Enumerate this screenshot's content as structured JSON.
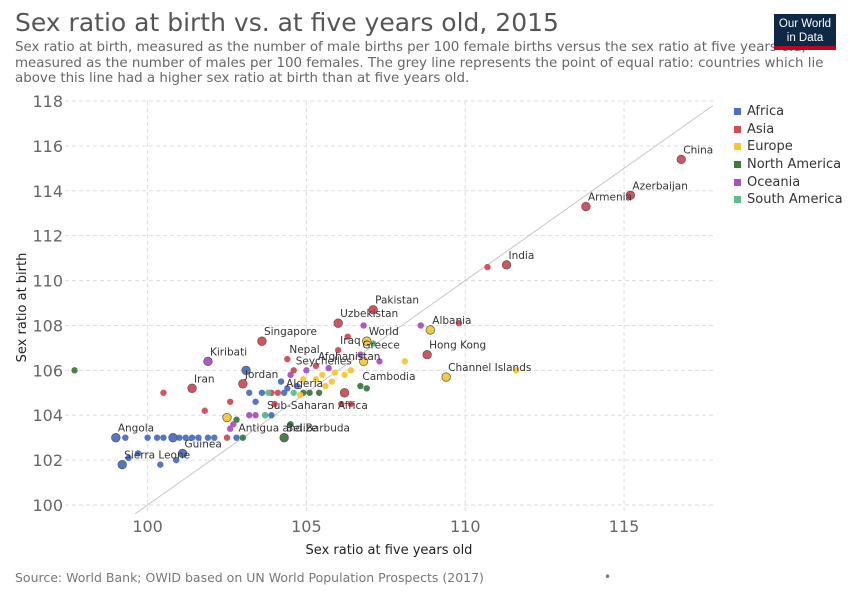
{
  "header": {
    "title": "Sex ratio at birth vs. at five years old, 2015",
    "subtitle": "Sex ratio at birth, measured as the number of male births per 100 female births versus the sex ratio at five years old, measured as the number of males per 100 females. The grey line represents the point of equal ratio: countries which lie above this line had a higher sex ratio at birth than at five years old.",
    "logo_line1": "Our World",
    "logo_line2": "in Data"
  },
  "footer": {
    "source": "Source: World Bank; OWID based on UN World Population Prospects (2017)",
    "dot": "•"
  },
  "colors": {
    "Africa": "#4c6fbf",
    "Asia": "#d14b55",
    "Europe": "#f6c735",
    "North America": "#3c7a42",
    "Oceania": "#a852c2",
    "South America": "#5ebe8b",
    "grid": "#dddddd",
    "diagonal": "#c8c8c8"
  },
  "legend": [
    "Africa",
    "Asia",
    "Europe",
    "North America",
    "Oceania",
    "South America"
  ],
  "chart_data": {
    "type": "scatter",
    "title": "Sex ratio at birth vs. at five years old, 2015",
    "xlabel": "Sex ratio at five years old",
    "ylabel": "Sex ratio at birth",
    "xlim": [
      97.4,
      117.8
    ],
    "ylim": [
      99.6,
      118
    ],
    "xticks": [
      100,
      105,
      110,
      115
    ],
    "yticks": [
      100,
      102,
      104,
      106,
      108,
      110,
      112,
      114,
      116,
      118
    ],
    "grid": true,
    "legend_position": "right",
    "reference_line": "y = x",
    "points": [
      {
        "x": 116.8,
        "y": 115.4,
        "region": "Asia",
        "label": "China",
        "big": true
      },
      {
        "x": 115.2,
        "y": 113.8,
        "region": "Asia",
        "label": "Azerbaijan",
        "big": true
      },
      {
        "x": 113.8,
        "y": 113.3,
        "region": "Asia",
        "label": "Armenia",
        "big": true
      },
      {
        "x": 111.3,
        "y": 110.7,
        "region": "Asia",
        "label": "India",
        "big": true
      },
      {
        "x": 110.7,
        "y": 110.6,
        "region": "Asia"
      },
      {
        "x": 107.1,
        "y": 108.7,
        "region": "Asia",
        "label": "Pakistan",
        "big": true
      },
      {
        "x": 106.0,
        "y": 108.1,
        "region": "Asia",
        "label": "Uzbekistan",
        "big": true
      },
      {
        "x": 106.8,
        "y": 108.0,
        "region": "Oceania"
      },
      {
        "x": 108.6,
        "y": 108.0,
        "region": "Oceania"
      },
      {
        "x": 109.8,
        "y": 108.1,
        "region": "Asia"
      },
      {
        "x": 108.9,
        "y": 107.8,
        "region": "Europe",
        "label": "Albania",
        "big": true
      },
      {
        "x": 106.9,
        "y": 107.3,
        "region": "Europe",
        "label": "World",
        "big": true
      },
      {
        "x": 106.3,
        "y": 107.5,
        "region": "Asia"
      },
      {
        "x": 107.1,
        "y": 107.2,
        "region": "South America"
      },
      {
        "x": 103.6,
        "y": 107.3,
        "region": "Asia",
        "label": "Singapore",
        "big": true
      },
      {
        "x": 106.0,
        "y": 106.9,
        "region": "Asia",
        "label": "Iraq"
      },
      {
        "x": 106.7,
        "y": 106.7,
        "region": "Oceania",
        "label": "Greece"
      },
      {
        "x": 108.8,
        "y": 106.7,
        "region": "Asia",
        "label": "Hong Kong",
        "big": true
      },
      {
        "x": 104.4,
        "y": 106.5,
        "region": "Asia",
        "label": "Nepal"
      },
      {
        "x": 106.8,
        "y": 106.4,
        "region": "Europe",
        "big": true
      },
      {
        "x": 108.1,
        "y": 106.4,
        "region": "Europe"
      },
      {
        "x": 107.3,
        "y": 106.4,
        "region": "Oceania"
      },
      {
        "x": 101.9,
        "y": 106.4,
        "region": "Oceania",
        "label": "Kiribati",
        "big": true
      },
      {
        "x": 105.3,
        "y": 106.2,
        "region": "Asia",
        "label": "Afghanistan"
      },
      {
        "x": 104.6,
        "y": 106.0,
        "region": "Asia",
        "label": "Seychelles"
      },
      {
        "x": 103.1,
        "y": 106.0,
        "region": "Africa",
        "big": true
      },
      {
        "x": 109.4,
        "y": 105.7,
        "region": "Europe",
        "label": "Channel Islands",
        "big": true
      },
      {
        "x": 111.6,
        "y": 106.0,
        "region": "Europe"
      },
      {
        "x": 103.0,
        "y": 105.4,
        "region": "Asia",
        "label": "Jordan",
        "big": true
      },
      {
        "x": 101.4,
        "y": 105.2,
        "region": "Asia",
        "label": "Iran",
        "big": true
      },
      {
        "x": 100.5,
        "y": 105.0,
        "region": "Asia"
      },
      {
        "x": 104.3,
        "y": 105.0,
        "region": "Africa",
        "label": "Algeria"
      },
      {
        "x": 106.7,
        "y": 105.3,
        "region": "North America",
        "label": "Cambodia"
      },
      {
        "x": 106.9,
        "y": 105.2,
        "region": "North America"
      },
      {
        "x": 106.2,
        "y": 105.0,
        "region": "Asia",
        "big": true
      },
      {
        "x": 106.1,
        "y": 104.5,
        "region": "Asia"
      },
      {
        "x": 106.4,
        "y": 104.5,
        "region": "Asia"
      },
      {
        "x": 104.0,
        "y": 104.5,
        "region": "Asia"
      },
      {
        "x": 105.1,
        "y": 105.0,
        "region": "North America"
      },
      {
        "x": 105.4,
        "y": 105.0,
        "region": "North America"
      },
      {
        "x": 104.9,
        "y": 105.0,
        "region": "North America"
      },
      {
        "x": 104.6,
        "y": 105.0,
        "region": "South America"
      },
      {
        "x": 104.1,
        "y": 105.0,
        "region": "Asia"
      },
      {
        "x": 103.9,
        "y": 105.0,
        "region": "Asia"
      },
      {
        "x": 103.6,
        "y": 105.0,
        "region": "Africa"
      },
      {
        "x": 103.8,
        "y": 105.0,
        "region": "South America"
      },
      {
        "x": 103.2,
        "y": 105.0,
        "region": "Africa"
      },
      {
        "x": 104.8,
        "y": 104.9,
        "region": "Europe"
      },
      {
        "x": 105.6,
        "y": 105.3,
        "region": "Europe"
      },
      {
        "x": 105.8,
        "y": 105.5,
        "region": "Europe"
      },
      {
        "x": 105.5,
        "y": 105.8,
        "region": "Europe"
      },
      {
        "x": 105.3,
        "y": 105.6,
        "region": "Europe"
      },
      {
        "x": 106.2,
        "y": 105.8,
        "region": "Europe"
      },
      {
        "x": 105.9,
        "y": 105.9,
        "region": "Europe"
      },
      {
        "x": 106.4,
        "y": 106.0,
        "region": "Europe"
      },
      {
        "x": 104.9,
        "y": 105.6,
        "region": "Europe"
      },
      {
        "x": 104.5,
        "y": 105.8,
        "region": "Oceania"
      },
      {
        "x": 104.2,
        "y": 105.5,
        "region": "Africa"
      },
      {
        "x": 105.0,
        "y": 106.0,
        "region": "Oceania"
      },
      {
        "x": 105.7,
        "y": 106.1,
        "region": "Oceania"
      },
      {
        "x": 104.7,
        "y": 105.3,
        "region": "Africa"
      },
      {
        "x": 104.4,
        "y": 105.2,
        "region": "Africa"
      },
      {
        "x": 103.4,
        "y": 104.6,
        "region": "Africa"
      },
      {
        "x": 103.7,
        "y": 104.0,
        "region": "Africa",
        "label": "Sub-Saharan Africa"
      },
      {
        "x": 102.6,
        "y": 104.6,
        "region": "Asia"
      },
      {
        "x": 101.8,
        "y": 104.2,
        "region": "Asia"
      },
      {
        "x": 103.2,
        "y": 104.0,
        "region": "Oceania"
      },
      {
        "x": 103.4,
        "y": 104.0,
        "region": "Oceania"
      },
      {
        "x": 103.7,
        "y": 104.0,
        "region": "South America"
      },
      {
        "x": 103.9,
        "y": 104.0,
        "region": "Africa"
      },
      {
        "x": 102.5,
        "y": 103.9,
        "region": "Europe",
        "big": true
      },
      {
        "x": 102.8,
        "y": 103.8,
        "region": "North America"
      },
      {
        "x": 102.7,
        "y": 103.6,
        "region": "Oceania"
      },
      {
        "x": 102.6,
        "y": 103.4,
        "region": "Oceania"
      },
      {
        "x": 104.5,
        "y": 103.6,
        "region": "North America"
      },
      {
        "x": 104.3,
        "y": 103.0,
        "region": "North America",
        "label": "Belize",
        "big": true
      },
      {
        "x": 102.8,
        "y": 103.0,
        "region": "Africa",
        "label": "Antigua and Barbuda"
      },
      {
        "x": 103.0,
        "y": 103.0,
        "region": "North America"
      },
      {
        "x": 102.5,
        "y": 103.0,
        "region": "Asia"
      },
      {
        "x": 102.1,
        "y": 103.0,
        "region": "Africa"
      },
      {
        "x": 101.9,
        "y": 103.0,
        "region": "Africa"
      },
      {
        "x": 101.6,
        "y": 103.0,
        "region": "Africa"
      },
      {
        "x": 101.4,
        "y": 103.0,
        "region": "Africa"
      },
      {
        "x": 101.2,
        "y": 103.0,
        "region": "Africa"
      },
      {
        "x": 101.0,
        "y": 103.0,
        "region": "Africa"
      },
      {
        "x": 100.8,
        "y": 103.0,
        "region": "Africa",
        "big": true
      },
      {
        "x": 100.5,
        "y": 103.0,
        "region": "Africa"
      },
      {
        "x": 100.3,
        "y": 103.0,
        "region": "Africa"
      },
      {
        "x": 100.0,
        "y": 103.0,
        "region": "Africa"
      },
      {
        "x": 99.3,
        "y": 103.0,
        "region": "Africa"
      },
      {
        "x": 99.0,
        "y": 103.0,
        "region": "Africa",
        "label": "Angola",
        "big": true
      },
      {
        "x": 101.1,
        "y": 102.3,
        "region": "Africa",
        "label": "Guinea",
        "big": true
      },
      {
        "x": 100.9,
        "y": 102.0,
        "region": "Africa"
      },
      {
        "x": 100.4,
        "y": 101.8,
        "region": "Africa"
      },
      {
        "x": 99.7,
        "y": 102.3,
        "region": "Africa"
      },
      {
        "x": 99.4,
        "y": 102.1,
        "region": "Africa"
      },
      {
        "x": 99.2,
        "y": 101.8,
        "region": "Africa",
        "label": "Sierra Leone",
        "big": true
      },
      {
        "x": 97.7,
        "y": 106.0,
        "region": "North America"
      }
    ]
  }
}
